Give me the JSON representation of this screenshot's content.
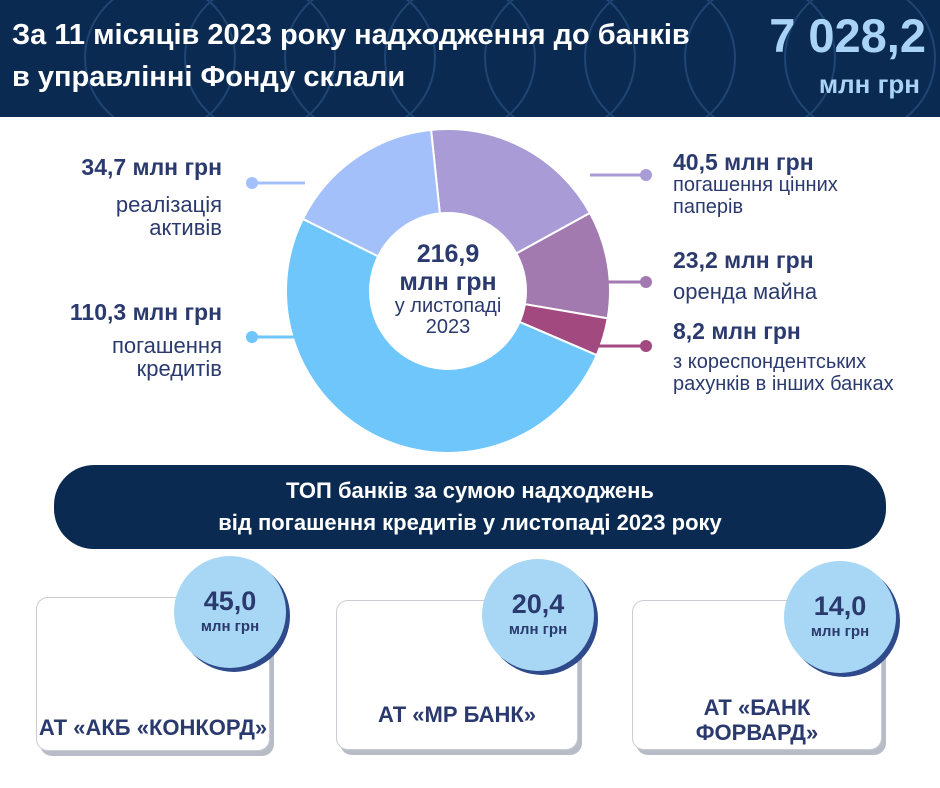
{
  "header": {
    "title": "За 11 місяців 2023 року надходження до банків в управлінні Фонду склали",
    "total_value": "7 028,2",
    "total_unit": "млн грн"
  },
  "chart_data": {
    "type": "pie",
    "center_value": "216,9",
    "center_unit": "млн грн",
    "center_caption": "у листопаді 2023",
    "slices": [
      {
        "value": 40.5,
        "amount": "40,5 млн грн",
        "label": "погашення цінних паперів",
        "color": "#a99bd6"
      },
      {
        "value": 23.2,
        "amount": "23,2 млн грн",
        "label": "оренда майна",
        "color": "#a27ab0"
      },
      {
        "value": 8.2,
        "amount": "8,2 млн грн",
        "label": "з кореспондентських рахунків в інших банках",
        "color": "#a24a80"
      },
      {
        "value": 110.3,
        "amount": "110,3 млн грн",
        "label": "погашення кредитів",
        "color": "#6ec6fb"
      },
      {
        "value": 34.7,
        "amount": "34,7 млн грн",
        "label": "реалізація активів",
        "color": "#a3c0fa"
      }
    ]
  },
  "banner": {
    "line1": "ТОП банків за сумою надходжень",
    "line2": "від погашення кредитів у листопаді 2023 року"
  },
  "banks": [
    {
      "value": "45,0",
      "unit": "млн грн",
      "name": "АТ «АКБ «КОНКОРД»"
    },
    {
      "value": "20,4",
      "unit": "млн грн",
      "name": "АТ «МР БАНК»"
    },
    {
      "value": "14,0",
      "unit": "млн грн",
      "name": "АТ «БАНК ФОРВАРД»"
    }
  ],
  "colors": {
    "navy": "#0b2a52",
    "accent_light": "#a9d4f7",
    "text": "#2b3a6e"
  }
}
